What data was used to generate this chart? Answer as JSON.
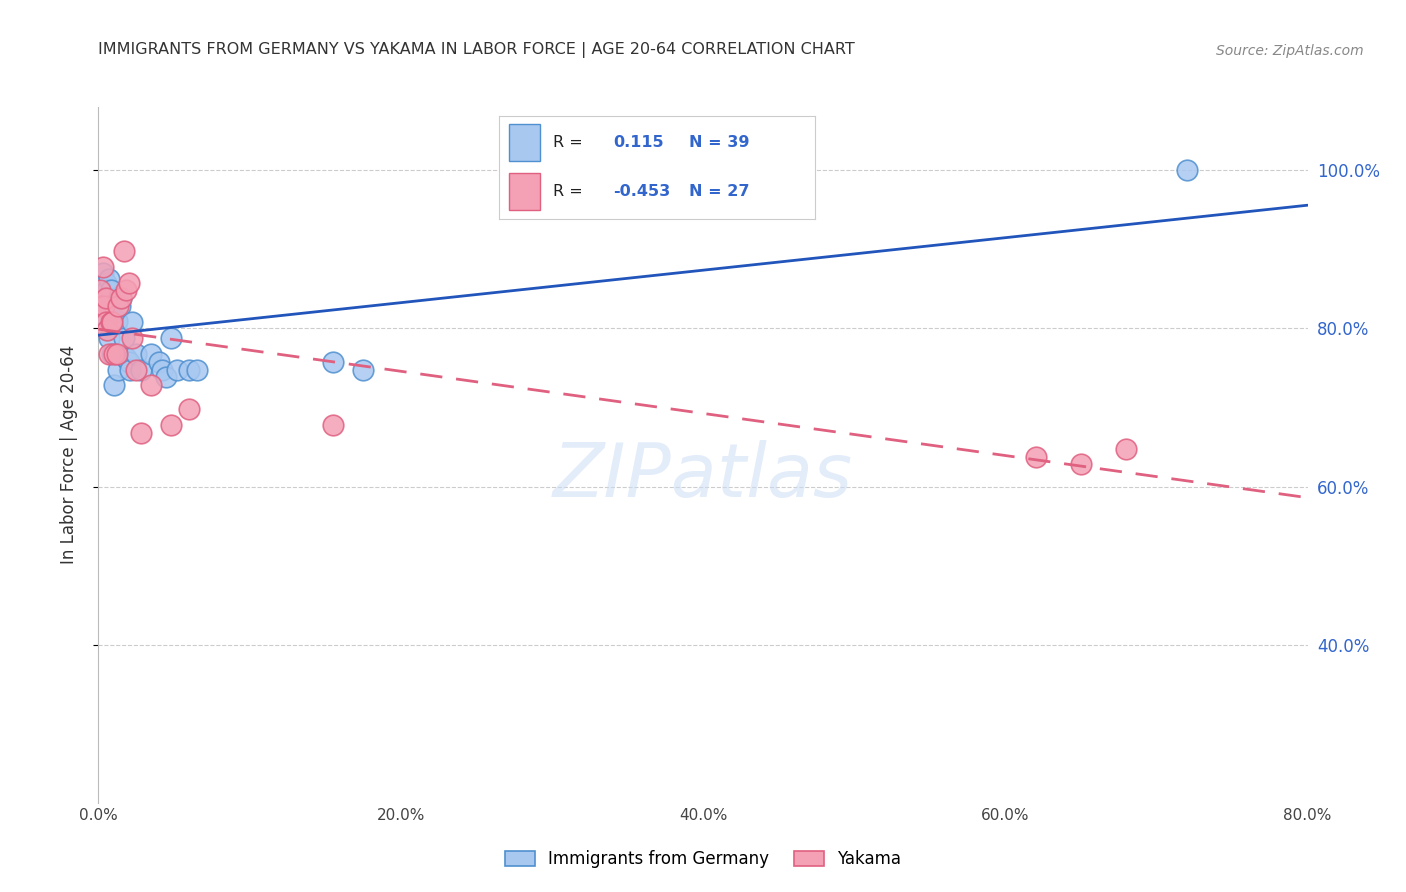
{
  "title": "IMMIGRANTS FROM GERMANY VS YAKAMA IN LABOR FORCE | AGE 20-64 CORRELATION CHART",
  "source": "Source: ZipAtlas.com",
  "ylabel": "In Labor Force | Age 20-64",
  "xmin": 0.0,
  "xmax": 0.8,
  "ymin": 0.2,
  "ymax": 1.08,
  "yticks": [
    0.4,
    0.6,
    0.8,
    1.0
  ],
  "ytick_labels": [
    "40.0%",
    "60.0%",
    "80.0%",
    "100.0%"
  ],
  "xticks": [
    0.0,
    0.1,
    0.2,
    0.3,
    0.4,
    0.5,
    0.6,
    0.7,
    0.8
  ],
  "xtick_labels": [
    "0.0%",
    "",
    "20.0%",
    "",
    "40.0%",
    "",
    "60.0%",
    "",
    "80.0%"
  ],
  "legend_R1_val": "0.115",
  "legend_N1": "N = 39",
  "legend_R2_val": "-0.453",
  "legend_N2": "N = 27",
  "germany_color": "#A8C8F0",
  "yakama_color": "#F4A0B5",
  "germany_edge_color": "#5090D0",
  "yakama_edge_color": "#E06080",
  "germany_line_color": "#2255BB",
  "yakama_line_color": "#E06080",
  "watermark": "ZIPatlas",
  "germany_x": [
    0.001,
    0.002,
    0.003,
    0.003,
    0.004,
    0.004,
    0.005,
    0.005,
    0.005,
    0.006,
    0.006,
    0.007,
    0.007,
    0.008,
    0.008,
    0.009,
    0.01,
    0.012,
    0.013,
    0.014,
    0.015,
    0.017,
    0.018,
    0.02,
    0.021,
    0.022,
    0.025,
    0.028,
    0.035,
    0.04,
    0.042,
    0.045,
    0.048,
    0.052,
    0.06,
    0.065,
    0.155,
    0.175,
    0.72
  ],
  "germany_y": [
    0.855,
    0.845,
    0.835,
    0.87,
    0.84,
    0.855,
    0.815,
    0.838,
    0.858,
    0.848,
    0.798,
    0.862,
    0.788,
    0.818,
    0.848,
    0.768,
    0.728,
    0.81,
    0.748,
    0.828,
    0.838,
    0.788,
    0.762,
    0.758,
    0.748,
    0.808,
    0.768,
    0.748,
    0.768,
    0.758,
    0.748,
    0.738,
    0.788,
    0.748,
    0.748,
    0.748,
    0.758,
    0.748,
    1.0
  ],
  "yakama_x": [
    0.001,
    0.002,
    0.003,
    0.004,
    0.005,
    0.005,
    0.006,
    0.007,
    0.008,
    0.009,
    0.01,
    0.012,
    0.013,
    0.015,
    0.017,
    0.018,
    0.02,
    0.022,
    0.025,
    0.028,
    0.035,
    0.048,
    0.06,
    0.155,
    0.62,
    0.65,
    0.68
  ],
  "yakama_y": [
    0.848,
    0.828,
    0.878,
    0.828,
    0.808,
    0.838,
    0.798,
    0.768,
    0.808,
    0.808,
    0.768,
    0.768,
    0.828,
    0.838,
    0.898,
    0.848,
    0.858,
    0.788,
    0.748,
    0.668,
    0.728,
    0.678,
    0.698,
    0.678,
    0.638,
    0.628,
    0.648
  ]
}
